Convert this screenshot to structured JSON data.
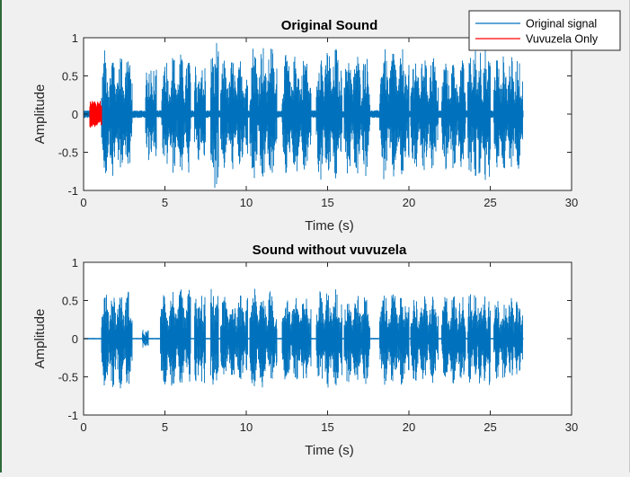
{
  "chart_data": [
    {
      "type": "line",
      "title": "Original Sound",
      "xlabel": "Time (s)",
      "ylabel": "Amplitude",
      "xlim": [
        0,
        30
      ],
      "ylim": [
        -1,
        1
      ],
      "xticks": [
        "0",
        "5",
        "10",
        "15",
        "20",
        "25",
        "30"
      ],
      "yticks": [
        "1",
        "0.5",
        "0",
        "-0.5",
        "-1"
      ],
      "grid": false,
      "legend": {
        "placement": "top-right",
        "entries": [
          "Original signal",
          "Vuvuzela Only"
        ]
      },
      "series": [
        {
          "name": "Original signal",
          "color": "#0072bd",
          "signal_start": 0,
          "signal_end": 27.0,
          "baseline_envelope": 0.05,
          "bursts": [
            {
              "start": 1.1,
              "end": 3.0,
              "peak": 0.85
            },
            {
              "start": 3.8,
              "end": 4.5,
              "peak": 0.62
            },
            {
              "start": 4.8,
              "end": 6.6,
              "peak": 0.8
            },
            {
              "start": 6.8,
              "end": 7.5,
              "peak": 0.7
            },
            {
              "start": 7.8,
              "end": 8.3,
              "peak": 0.98
            },
            {
              "start": 8.4,
              "end": 10.1,
              "peak": 0.74
            },
            {
              "start": 10.2,
              "end": 11.9,
              "peak": 0.94
            },
            {
              "start": 12.2,
              "end": 14.0,
              "peak": 0.81
            },
            {
              "start": 14.3,
              "end": 15.9,
              "peak": 0.9
            },
            {
              "start": 16.0,
              "end": 17.6,
              "peak": 0.84
            },
            {
              "start": 18.2,
              "end": 20.0,
              "peak": 0.88
            },
            {
              "start": 20.1,
              "end": 21.8,
              "peak": 0.8
            },
            {
              "start": 22.0,
              "end": 23.5,
              "peak": 0.74
            },
            {
              "start": 23.6,
              "end": 25.0,
              "peak": 0.92
            },
            {
              "start": 25.2,
              "end": 27.0,
              "peak": 0.79
            }
          ]
        },
        {
          "name": "Vuvuzela Only",
          "color": "#ff0000",
          "signal_start": 0.4,
          "signal_end": 1.1,
          "peak": 0.18
        }
      ]
    },
    {
      "type": "line",
      "title": "Sound without vuvuzela",
      "xlabel": "Time (s)",
      "ylabel": "Amplitude",
      "xlim": [
        0,
        30
      ],
      "ylim": [
        -1,
        1
      ],
      "xticks": [
        "0",
        "5",
        "10",
        "15",
        "20",
        "25",
        "30"
      ],
      "yticks": [
        "1",
        "0.5",
        "0",
        "-0.5",
        "-1"
      ],
      "grid": false,
      "series": [
        {
          "color": "#0072bd",
          "signal_start": 0,
          "signal_end": 27.0,
          "baseline_envelope": 0.01,
          "bursts": [
            {
              "start": 1.1,
              "end": 3.0,
              "peak": 0.65
            },
            {
              "start": 3.6,
              "end": 4.0,
              "peak": 0.12
            },
            {
              "start": 4.7,
              "end": 6.6,
              "peak": 0.65
            },
            {
              "start": 6.8,
              "end": 7.5,
              "peak": 0.6
            },
            {
              "start": 7.8,
              "end": 8.3,
              "peak": 0.72
            },
            {
              "start": 8.4,
              "end": 10.1,
              "peak": 0.58
            },
            {
              "start": 10.2,
              "end": 11.9,
              "peak": 0.68
            },
            {
              "start": 12.2,
              "end": 14.0,
              "peak": 0.6
            },
            {
              "start": 14.3,
              "end": 15.9,
              "peak": 0.66
            },
            {
              "start": 16.0,
              "end": 17.6,
              "peak": 0.62
            },
            {
              "start": 18.2,
              "end": 20.0,
              "peak": 0.64
            },
            {
              "start": 20.1,
              "end": 21.8,
              "peak": 0.58
            },
            {
              "start": 22.0,
              "end": 23.5,
              "peak": 0.6
            },
            {
              "start": 23.6,
              "end": 25.0,
              "peak": 0.64
            },
            {
              "start": 25.2,
              "end": 27.0,
              "peak": 0.56
            }
          ]
        }
      ]
    }
  ]
}
